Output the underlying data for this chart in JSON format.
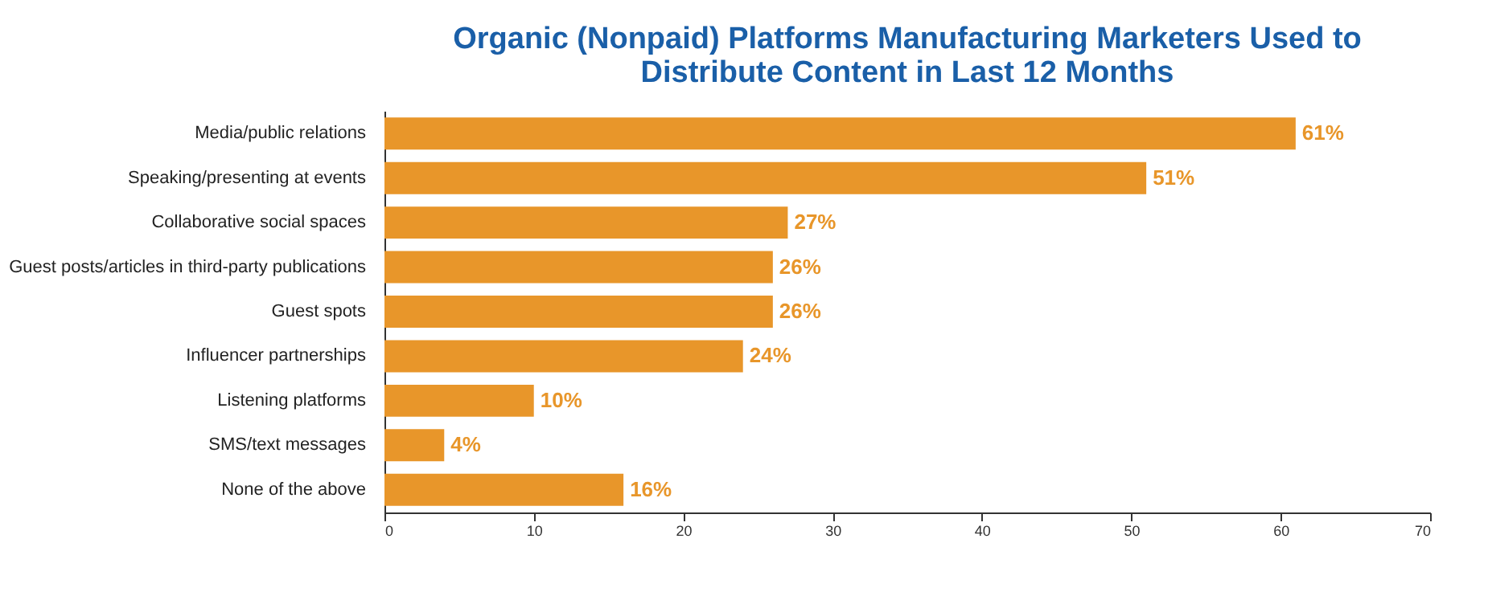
{
  "chart_data": {
    "type": "bar",
    "orientation": "horizontal",
    "title": "Organic (Nonpaid) Platforms Manufacturing Marketers Used to\nDistribute Content in Last 12 Months",
    "categories": [
      "Media/public relations",
      "Speaking/presenting at events",
      "Collaborative social spaces",
      "Guest posts/articles in third-party publications",
      "Guest spots",
      "Influencer partnerships",
      "Listening platforms",
      "SMS/text messages",
      "None of the above"
    ],
    "values": [
      61,
      51,
      27,
      26,
      26,
      24,
      10,
      4,
      16
    ],
    "value_labels": [
      "61%",
      "51%",
      "27%",
      "26%",
      "26%",
      "24%",
      "10%",
      "4%",
      "16%"
    ],
    "color": "#e8962a",
    "xlim": [
      0,
      70
    ],
    "xticks": [
      0,
      10,
      20,
      30,
      40,
      50,
      60,
      70
    ],
    "grid": false
  }
}
